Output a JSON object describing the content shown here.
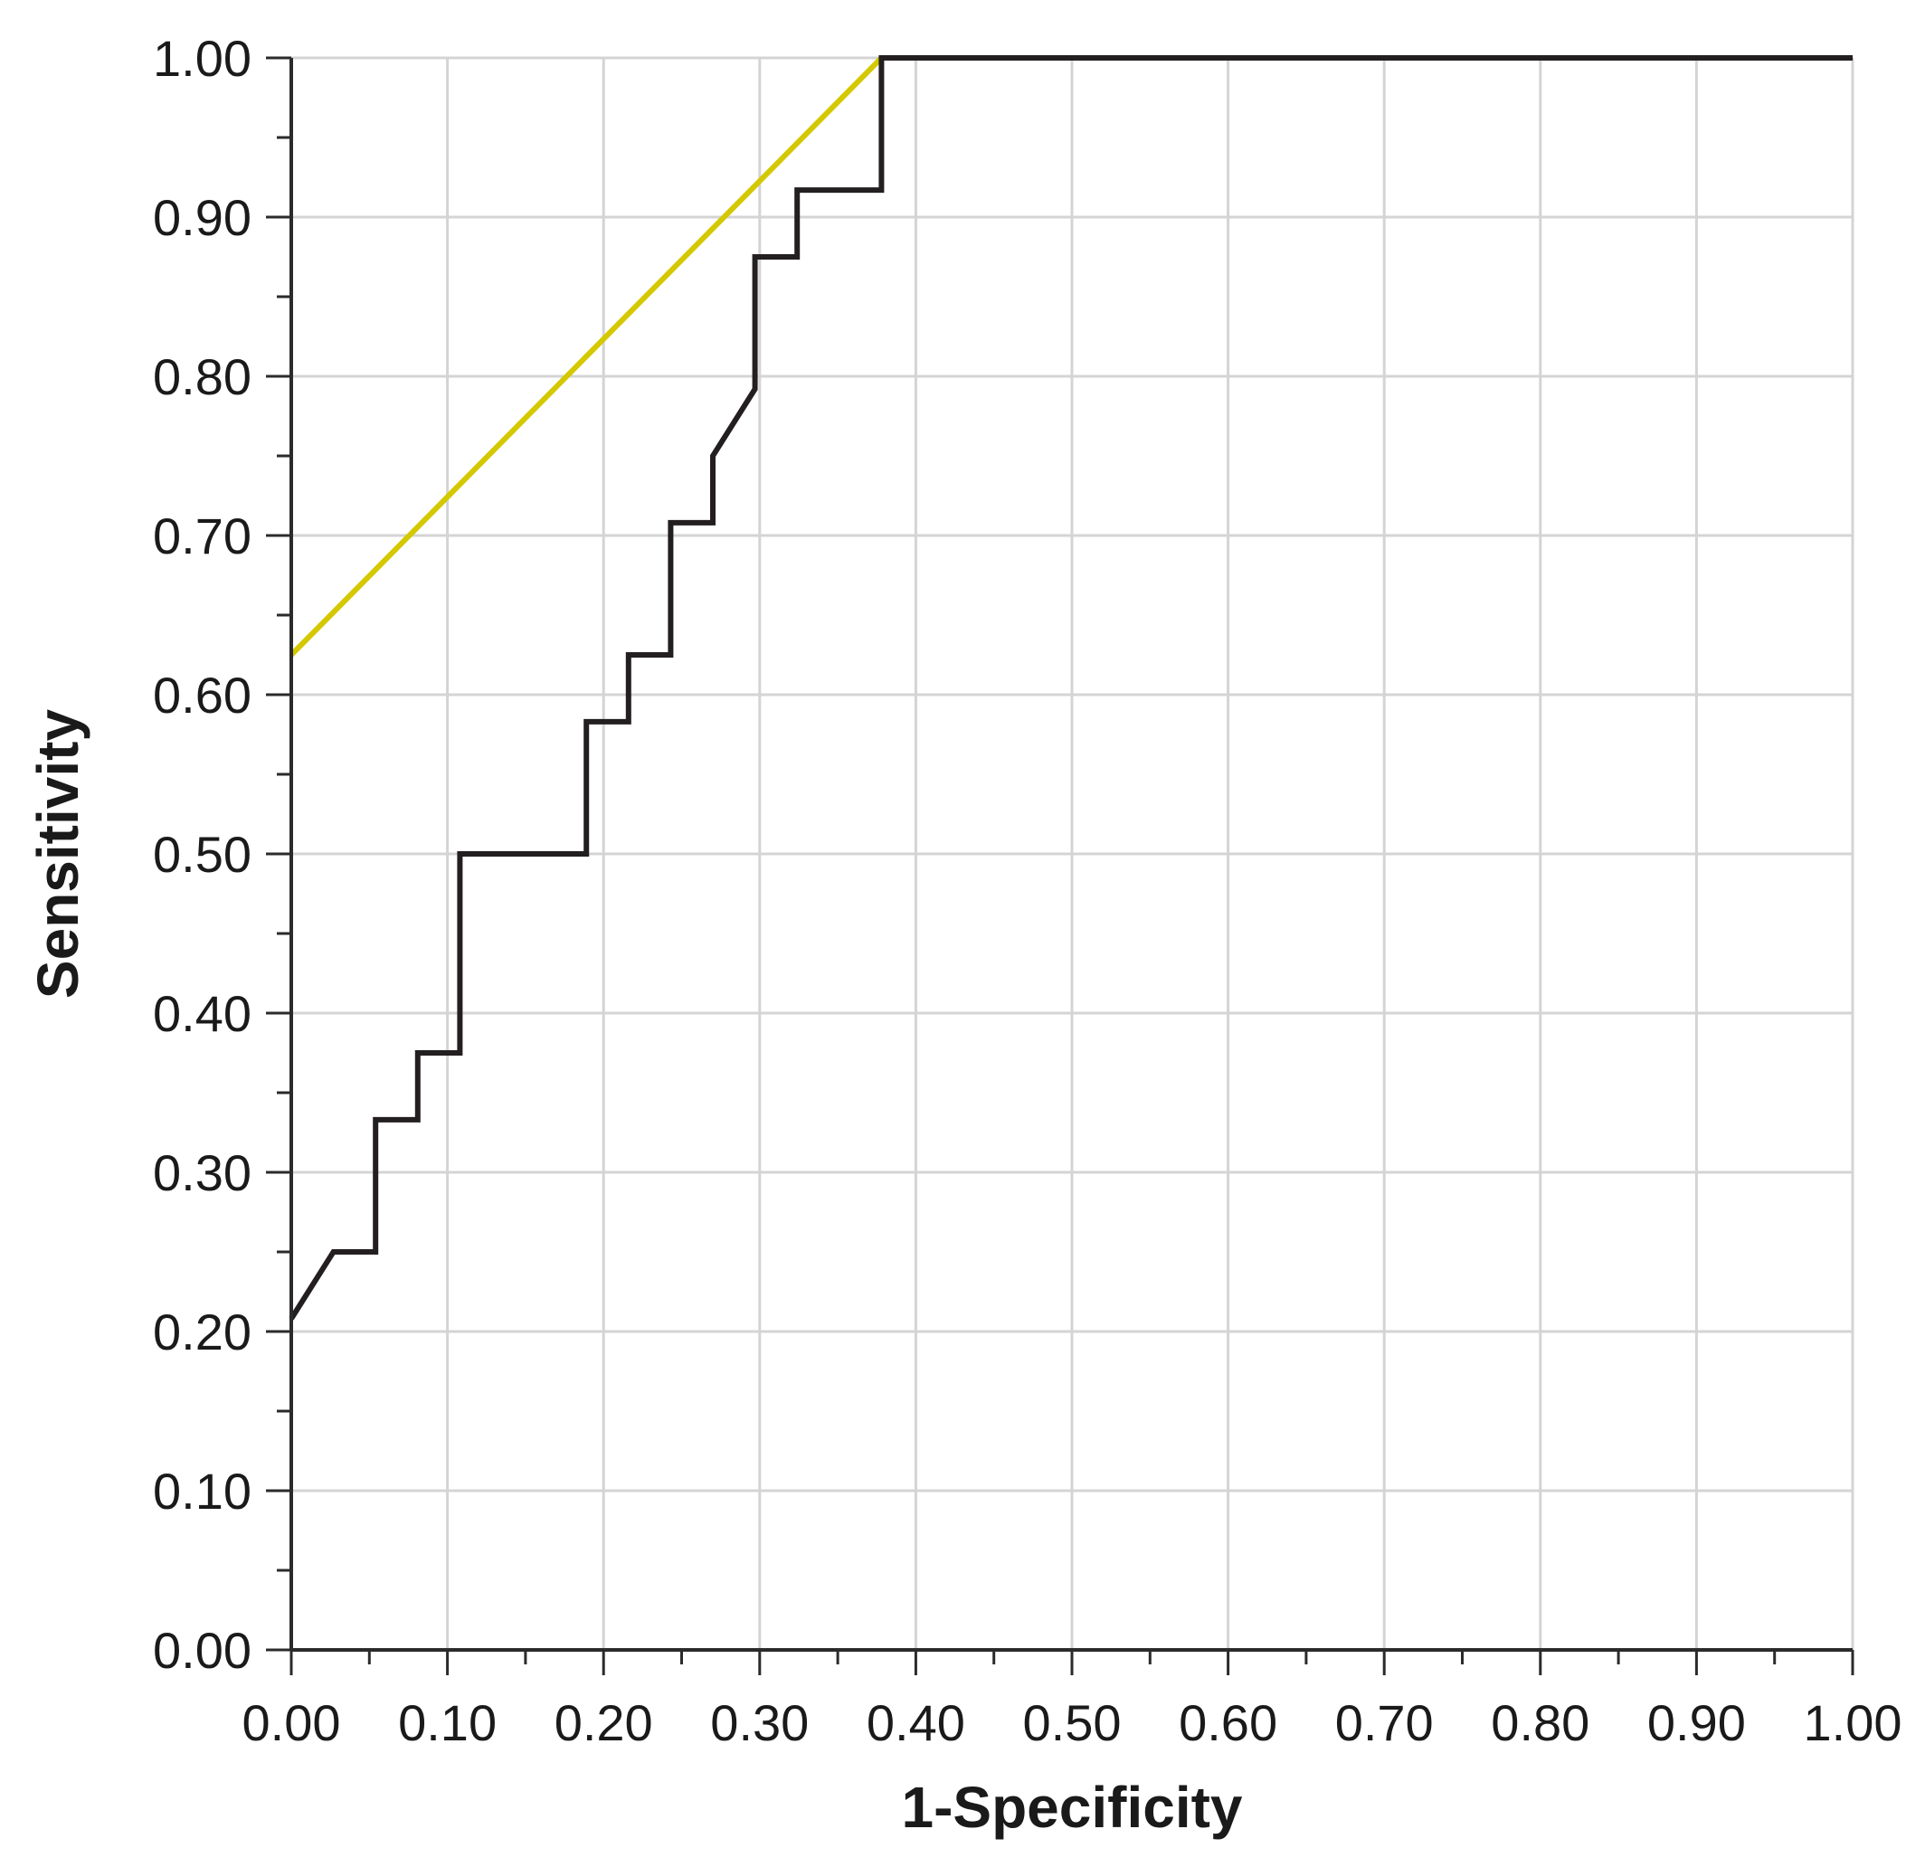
{
  "chart_data": {
    "type": "line",
    "title": "",
    "xlabel": "1-Specificity",
    "ylabel": "Sensitivity",
    "xlim": [
      0,
      1
    ],
    "ylim": [
      0,
      1
    ],
    "grid": true,
    "x_ticks": [
      "0.00",
      "0.10",
      "0.20",
      "0.30",
      "0.40",
      "0.50",
      "0.60",
      "0.70",
      "0.80",
      "0.90",
      "1.00"
    ],
    "y_ticks": [
      "0.00",
      "0.10",
      "0.20",
      "0.30",
      "0.40",
      "0.50",
      "0.60",
      "0.70",
      "0.80",
      "0.90",
      "1.00"
    ],
    "series": [
      {
        "color": "#d4c800",
        "points": [
          [
            0.0,
            0.625
          ],
          [
            0.378,
            1.0
          ]
        ]
      },
      {
        "color": "#231f20",
        "points": [
          [
            0.0,
            0.208
          ],
          [
            0.027,
            0.25
          ],
          [
            0.054,
            0.25
          ],
          [
            0.054,
            0.333
          ],
          [
            0.081,
            0.333
          ],
          [
            0.081,
            0.375
          ],
          [
            0.108,
            0.375
          ],
          [
            0.108,
            0.5
          ],
          [
            0.189,
            0.5
          ],
          [
            0.189,
            0.583
          ],
          [
            0.216,
            0.583
          ],
          [
            0.216,
            0.625
          ],
          [
            0.243,
            0.625
          ],
          [
            0.243,
            0.708
          ],
          [
            0.27,
            0.708
          ],
          [
            0.27,
            0.75
          ],
          [
            0.297,
            0.792
          ],
          [
            0.297,
            0.875
          ],
          [
            0.324,
            0.875
          ],
          [
            0.324,
            0.917
          ],
          [
            0.378,
            0.917
          ],
          [
            0.378,
            1.0
          ],
          [
            1.0,
            1.0
          ]
        ]
      }
    ]
  }
}
